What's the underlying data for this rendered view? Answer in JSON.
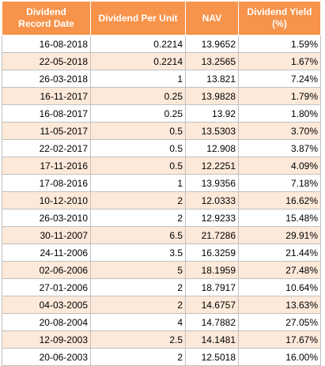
{
  "headers": {
    "record_date": "Dividend\nRecord Date",
    "dividend_per_unit": "Dividend Per Unit",
    "nav": "NAV",
    "dividend_yield": "Dividend Yield\n(%)"
  },
  "rows": [
    {
      "date": "16-08-2018",
      "dividend": "0.2214",
      "nav": "13.9652",
      "yield": "1.59%"
    },
    {
      "date": "22-05-2018",
      "dividend": "0.2214",
      "nav": "13.2565",
      "yield": "1.67%"
    },
    {
      "date": "26-03-2018",
      "dividend": "1",
      "nav": "13.821",
      "yield": "7.24%"
    },
    {
      "date": "16-11-2017",
      "dividend": "0.25",
      "nav": "13.9828",
      "yield": "1.79%"
    },
    {
      "date": "16-08-2017",
      "dividend": "0.25",
      "nav": "13.92",
      "yield": "1.80%"
    },
    {
      "date": "11-05-2017",
      "dividend": "0.5",
      "nav": "13.5303",
      "yield": "3.70%"
    },
    {
      "date": "22-02-2017",
      "dividend": "0.5",
      "nav": "12.908",
      "yield": "3.87%"
    },
    {
      "date": "17-11-2016",
      "dividend": "0.5",
      "nav": "12.2251",
      "yield": "4.09%"
    },
    {
      "date": "17-08-2016",
      "dividend": "1",
      "nav": "13.9356",
      "yield": "7.18%"
    },
    {
      "date": "10-12-2010",
      "dividend": "2",
      "nav": "12.0333",
      "yield": "16.62%"
    },
    {
      "date": "26-03-2010",
      "dividend": "2",
      "nav": "12.9233",
      "yield": "15.48%"
    },
    {
      "date": "30-11-2007",
      "dividend": "6.5",
      "nav": "21.7286",
      "yield": "29.91%"
    },
    {
      "date": "24-11-2006",
      "dividend": "3.5",
      "nav": "16.3259",
      "yield": "21.44%"
    },
    {
      "date": "02-06-2006",
      "dividend": "5",
      "nav": "18.1959",
      "yield": "27.48%"
    },
    {
      "date": "27-01-2006",
      "dividend": "2",
      "nav": "18.7917",
      "yield": "10.64%"
    },
    {
      "date": "04-03-2005",
      "dividend": "2",
      "nav": "14.6757",
      "yield": "13.63%"
    },
    {
      "date": "20-08-2004",
      "dividend": "4",
      "nav": "14.7882",
      "yield": "27.05%"
    },
    {
      "date": "12-09-2003",
      "dividend": "2.5",
      "nav": "14.1481",
      "yield": "17.67%"
    },
    {
      "date": "20-06-2003",
      "dividend": "2",
      "nav": "12.5018",
      "yield": "16.00%"
    }
  ],
  "colors": {
    "header_background": "#f7934a",
    "header_text": "#ffffff",
    "alternate_row": "#fde9d9",
    "plain_row": "#ffffff",
    "grid_line": "#c0c0c0"
  }
}
